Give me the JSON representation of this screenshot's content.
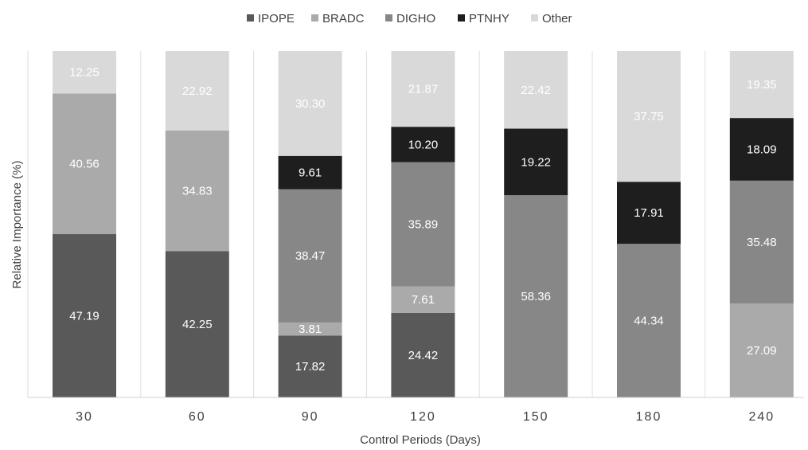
{
  "chart_data": {
    "type": "bar",
    "stacked": true,
    "title": "",
    "xlabel": "Control Periods (Days)",
    "ylabel": "Relative Importance (%)",
    "ylim": [
      0,
      100
    ],
    "grid": false,
    "legend_position": "top",
    "categories": [
      "30",
      "60",
      "90",
      "120",
      "150",
      "180",
      "240"
    ],
    "series": [
      {
        "name": "IPOPE",
        "color": "#595959",
        "label_color": "#ffffff",
        "values": [
          47.19,
          42.25,
          17.82,
          24.42,
          0,
          0,
          0
        ],
        "labels": [
          "47.19",
          "42.25",
          "17.82",
          "24.42",
          null,
          null,
          null
        ]
      },
      {
        "name": "BRADC",
        "color": "#aaaaaa",
        "label_color": "#ffffff",
        "values": [
          40.56,
          34.83,
          3.81,
          7.61,
          0,
          0,
          27.09
        ],
        "labels": [
          "40.56",
          "34.83",
          "3.81",
          "7.61",
          null,
          null,
          "27.09"
        ]
      },
      {
        "name": "DIGHO",
        "color": "#878787",
        "label_color": "#ffffff",
        "values": [
          0,
          0,
          38.47,
          35.89,
          58.36,
          44.34,
          35.48
        ],
        "labels": [
          null,
          null,
          "38.47",
          "35.89",
          "58.36",
          "44.34",
          "35.48"
        ]
      },
      {
        "name": "PTNHY",
        "color": "#1e1e1e",
        "label_color": "#ffffff",
        "values": [
          0,
          0,
          9.61,
          10.2,
          19.22,
          17.91,
          18.09
        ],
        "labels": [
          null,
          null,
          "9.61",
          "10.20",
          "19.22",
          "17.91",
          "18.09"
        ]
      },
      {
        "name": "Other",
        "color": "#d9d9d9",
        "label_color": "#ffffff",
        "values": [
          12.25,
          22.92,
          30.3,
          21.87,
          22.42,
          37.75,
          19.35
        ],
        "labels": [
          "12.25",
          "22.92",
          "30.30",
          "21.87",
          "22.42",
          "37.75",
          "19.35"
        ]
      }
    ]
  }
}
